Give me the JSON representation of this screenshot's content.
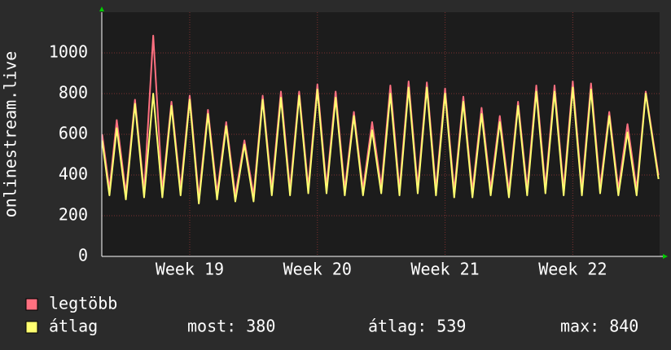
{
  "chart_data": {
    "type": "line",
    "ylabel": "onlinestream.live",
    "x": [
      -4.8,
      -4.4,
      -4,
      -3.5,
      -3,
      -2.5,
      -2,
      -1.5,
      -1,
      -0.5,
      0,
      0.5,
      1,
      1.5,
      2,
      2.5,
      3,
      3.5,
      4,
      4.5,
      5,
      5.5,
      6,
      6.5,
      7,
      7.5,
      8,
      8.5,
      9,
      9.5,
      10,
      10.5,
      11,
      11.5,
      12,
      12.5,
      13,
      13.5,
      14,
      14.5,
      15,
      15.5,
      16,
      16.5,
      17,
      17.5,
      18,
      18.5,
      19,
      19.5,
      20,
      20.5,
      21,
      21.5,
      22,
      22.5,
      23,
      23.5,
      24,
      24.5,
      25,
      25.7
    ],
    "series": [
      {
        "name": "legtöbb",
        "color": "#ff7080",
        "values": [
          600,
          330,
          670,
          310,
          770,
          320,
          1085,
          320,
          760,
          330,
          790,
          290,
          720,
          310,
          660,
          300,
          570,
          300,
          790,
          330,
          810,
          330,
          810,
          340,
          845,
          340,
          810,
          330,
          710,
          330,
          660,
          340,
          840,
          330,
          860,
          340,
          855,
          330,
          825,
          320,
          785,
          320,
          730,
          330,
          690,
          320,
          760,
          330,
          840,
          340,
          840,
          330,
          860,
          330,
          850,
          340,
          710,
          330,
          650,
          330,
          810,
          400
        ]
      },
      {
        "name": "átlag",
        "color": "#ffff70",
        "values": [
          570,
          300,
          630,
          280,
          750,
          290,
          800,
          290,
          740,
          300,
          770,
          260,
          700,
          280,
          640,
          270,
          550,
          270,
          770,
          300,
          780,
          300,
          790,
          310,
          820,
          310,
          780,
          300,
          690,
          300,
          620,
          310,
          800,
          300,
          830,
          310,
          830,
          300,
          800,
          290,
          760,
          290,
          700,
          300,
          660,
          290,
          740,
          300,
          810,
          310,
          810,
          300,
          830,
          300,
          820,
          310,
          690,
          300,
          610,
          300,
          800,
          380
        ]
      }
    ],
    "stats": [
      "most: 380",
      "átlag: 539",
      "max: 840"
    ],
    "xlim": [
      -4.82,
      25.76
    ],
    "xticks": [
      {
        "value": 0,
        "label": "Week 19"
      },
      {
        "value": 7,
        "label": "Week 20"
      },
      {
        "value": 14,
        "label": "Week 21"
      },
      {
        "value": 21,
        "label": "Week 22"
      }
    ],
    "ylim": [
      0,
      1200
    ],
    "yticks": [
      0,
      200,
      400,
      600,
      800,
      1000
    ],
    "grid": true
  }
}
